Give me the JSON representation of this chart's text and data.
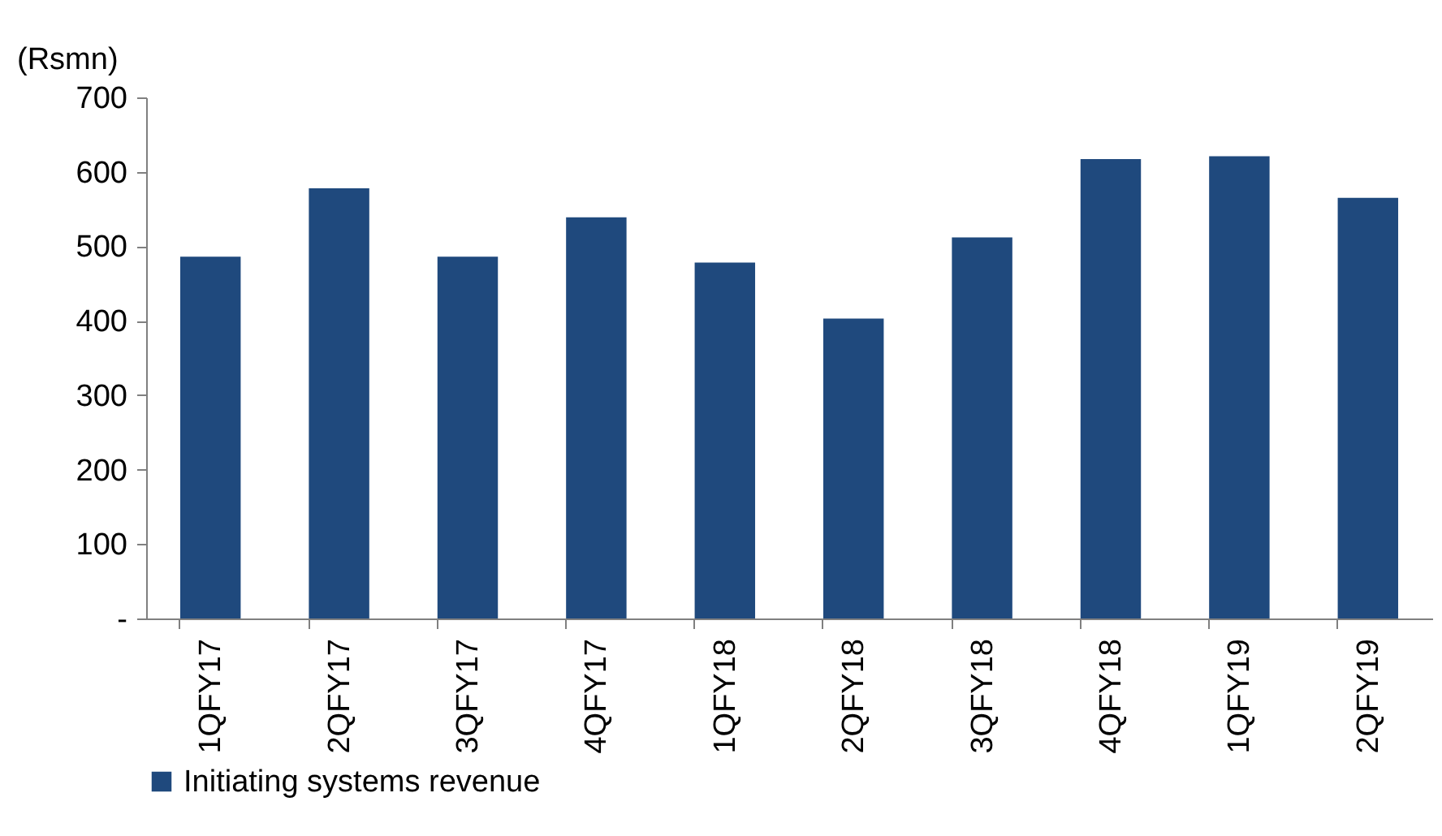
{
  "chart_data": {
    "type": "bar",
    "ylabel": "(Rsmn)",
    "categories": [
      "1QFY17",
      "2QFY17",
      "3QFY17",
      "4QFY17",
      "1QFY18",
      "2QFY18",
      "3QFY18",
      "4QFY18",
      "1QFY19",
      "2QFY19"
    ],
    "series": [
      {
        "name": "Initiating systems revenue",
        "color": "#1f497d",
        "values": [
          486,
          578,
          486,
          539,
          478,
          403,
          512,
          617,
          621,
          565
        ]
      }
    ],
    "ylim": [
      0,
      700
    ],
    "yticks": [
      {
        "value": 0,
        "label": "-"
      },
      100,
      200,
      300,
      400,
      500,
      600,
      700
    ],
    "grid": false,
    "legend": "bottom"
  }
}
